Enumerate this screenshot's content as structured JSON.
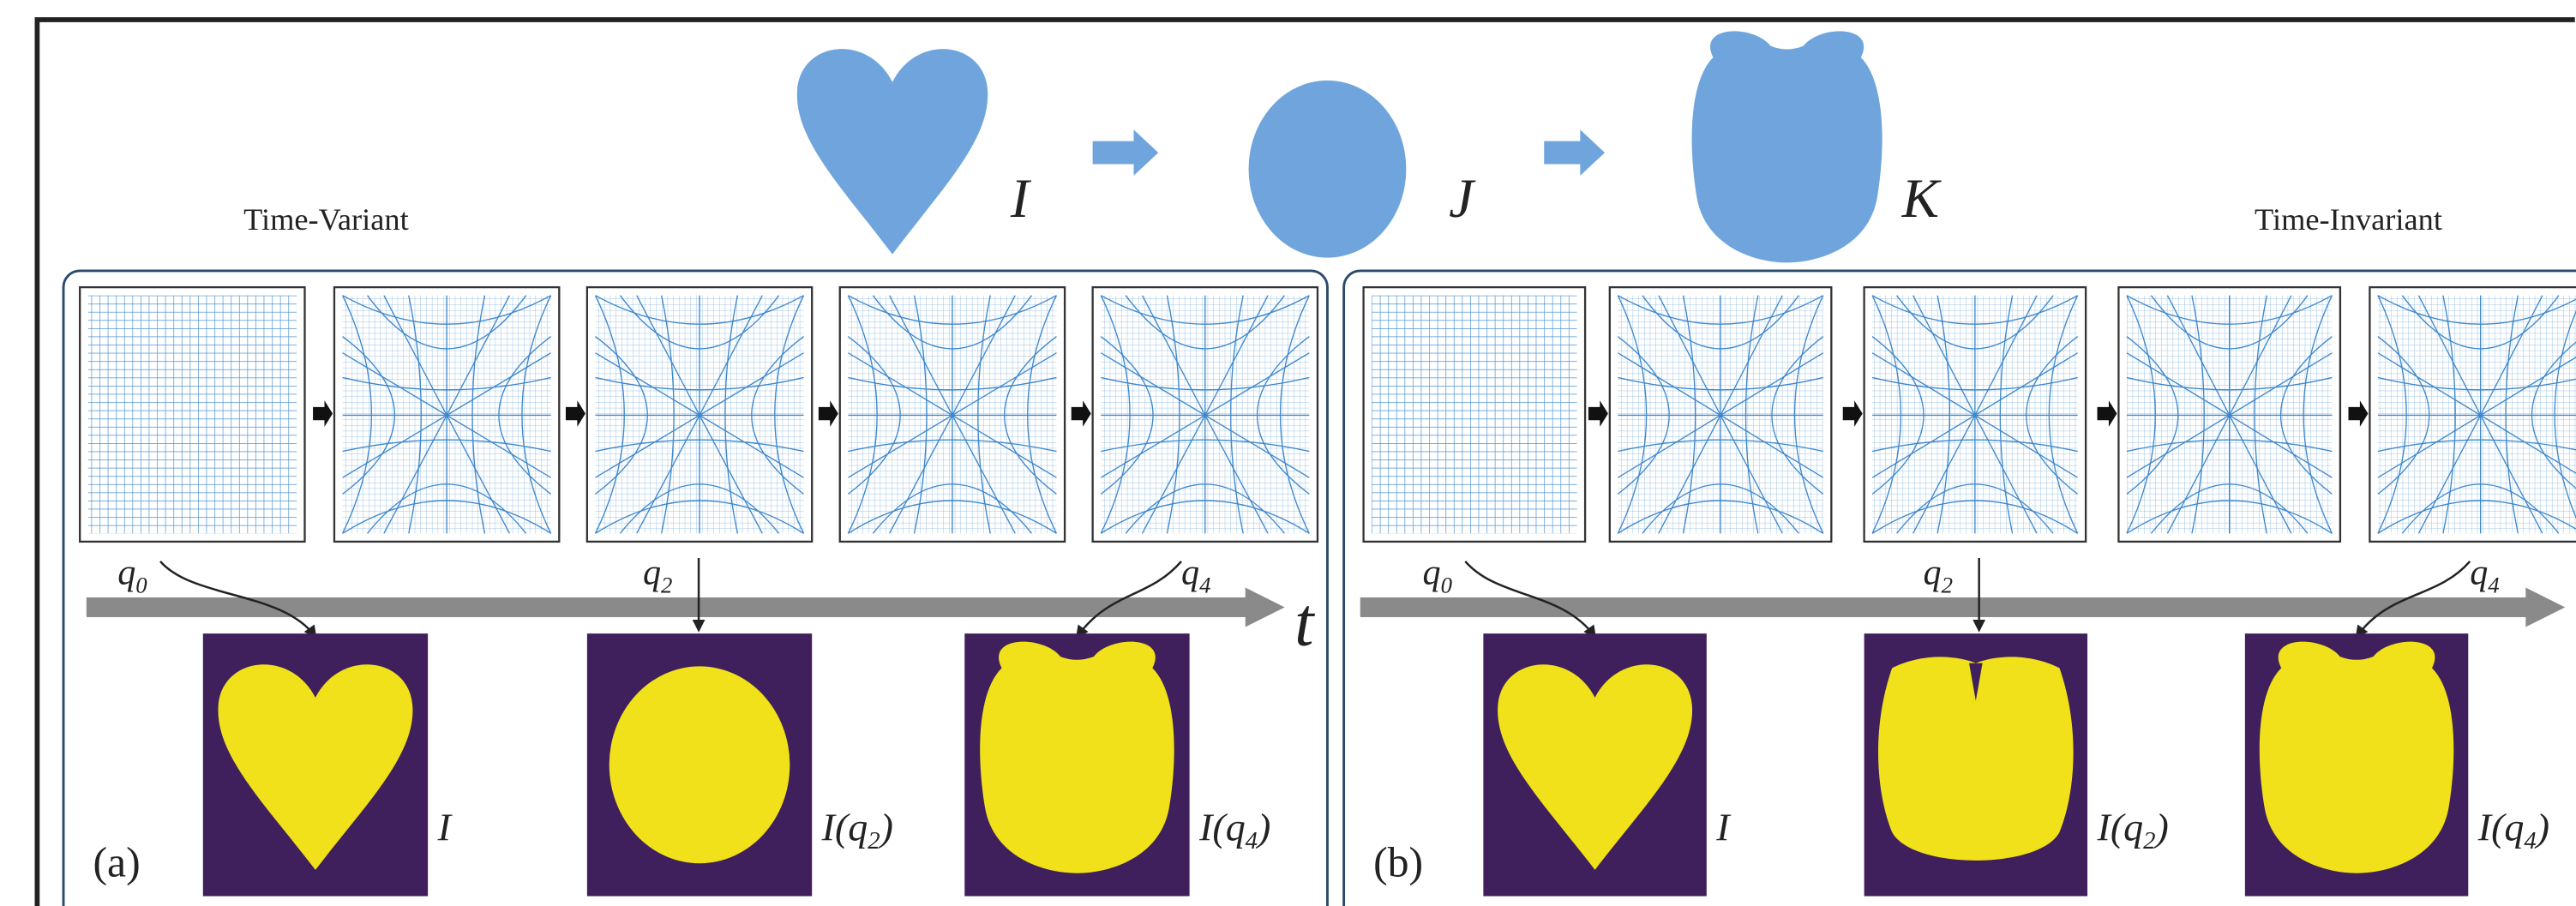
{
  "header": {
    "left_label": "Time-Variant",
    "right_label": "Time-Invariant",
    "shapes": [
      "I",
      "J",
      "K"
    ]
  },
  "panels": [
    {
      "tag": "(a)",
      "axis_label": "t",
      "q_labels": [
        {
          "base": "q",
          "sub": "0"
        },
        {
          "base": "q",
          "sub": "2"
        },
        {
          "base": "q",
          "sub": "4"
        }
      ],
      "image_labels": [
        {
          "before": "I"
        },
        {
          "before": "I(q",
          "sub": "2",
          "after": ")"
        },
        {
          "before": "I(q",
          "sub": "4",
          "after": ")"
        }
      ]
    },
    {
      "tag": "(b)",
      "q_labels": [
        {
          "base": "q",
          "sub": "0"
        },
        {
          "base": "q",
          "sub": "2"
        },
        {
          "base": "q",
          "sub": "4"
        }
      ],
      "image_labels": [
        {
          "before": "I"
        },
        {
          "before": "I(q",
          "sub": "2",
          "after": ")"
        },
        {
          "before": "I(q",
          "sub": "4",
          "after": ")"
        }
      ]
    }
  ]
}
